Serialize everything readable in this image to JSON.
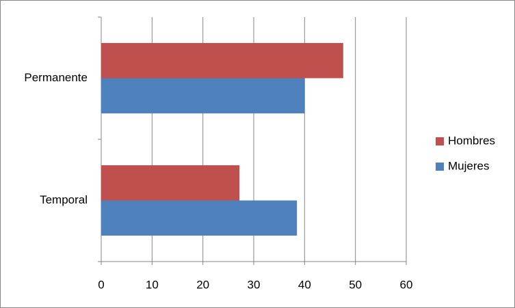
{
  "chart_data": {
    "type": "bar",
    "orientation": "horizontal",
    "categories": [
      "Permanente",
      "Temporal"
    ],
    "series": [
      {
        "name": "Hombres",
        "color": "#c0504d",
        "values": [
          47.6,
          27.2
        ]
      },
      {
        "name": "Mujeres",
        "color": "#4f81bd",
        "values": [
          40,
          38.5
        ]
      }
    ],
    "xlim": [
      0,
      60
    ],
    "xticks": [
      0,
      10,
      20,
      30,
      40,
      50,
      60
    ],
    "grid": true,
    "legend": "right"
  }
}
